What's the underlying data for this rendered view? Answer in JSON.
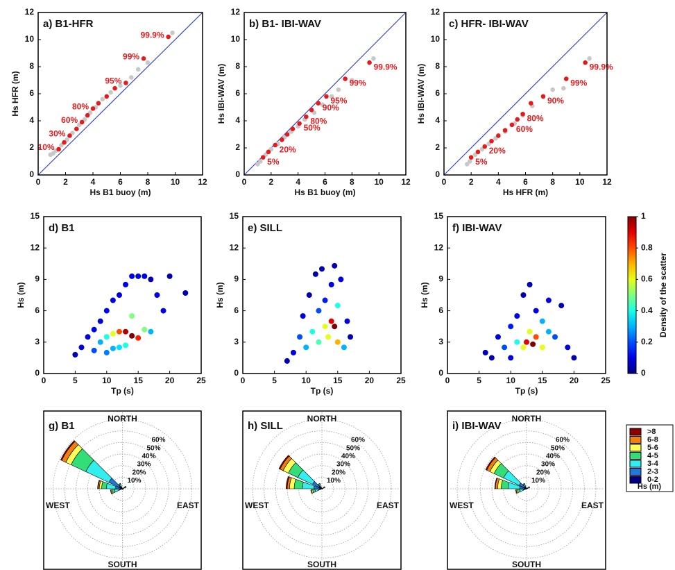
{
  "chart_data": [
    {
      "type": "qq",
      "title": "a) B1-HFR",
      "x_label": "Hs B1 buoy (m)",
      "y_label": "Hs HFR  (m)",
      "xlim": [
        0,
        12
      ],
      "ylim": [
        0,
        12
      ],
      "xticks": [
        0,
        2,
        4,
        6,
        8,
        10,
        12
      ],
      "yticks": [
        0,
        2,
        4,
        6,
        8,
        10,
        12
      ],
      "series": [
        {
          "color": "#c8c8c8",
          "x": [
            0.9,
            1.1,
            1.3,
            1.7,
            2.1,
            2.5,
            3.0,
            3.4,
            3.8,
            4.2,
            4.7,
            5.3,
            6.0,
            6.8,
            7.3,
            8.0,
            9.8
          ],
          "values": [
            1.5,
            1.6,
            1.8,
            2.2,
            2.6,
            3.1,
            3.7,
            4.1,
            4.6,
            5.0,
            5.6,
            6.1,
            6.6,
            7.2,
            7.8,
            8.3,
            10.5
          ]
        },
        {
          "color": "#e41a1c",
          "x": [
            1.5,
            1.9,
            2.3,
            2.8,
            3.2,
            3.6,
            4.0,
            4.4,
            5.0,
            5.6,
            6.4,
            7.7,
            9.5
          ],
          "values": [
            1.9,
            2.4,
            2.9,
            3.4,
            3.9,
            4.4,
            4.9,
            5.3,
            5.8,
            6.4,
            6.8,
            8.6,
            10.2
          ],
          "point_labels": [
            "10%",
            null,
            "30%",
            null,
            "60%",
            null,
            "80%",
            null,
            null,
            null,
            "95%",
            "99%",
            "99.9%"
          ]
        }
      ]
    },
    {
      "type": "qq",
      "title": "b) B1- IBI-WAV",
      "x_label": "Hs B1 buoy (m)",
      "y_label": "Hs IBI-WAV  (m)",
      "xlim": [
        0,
        12
      ],
      "ylim": [
        0,
        12
      ],
      "xticks": [
        0,
        2,
        4,
        6,
        8,
        10,
        12
      ],
      "yticks": [
        0,
        2,
        4,
        6,
        8,
        10,
        12
      ],
      "series": [
        {
          "color": "#c8c8c8",
          "x": [
            1.0,
            1.2,
            1.6,
            2.0,
            2.5,
            3.0,
            3.5,
            4.0,
            4.5,
            5.2,
            5.8,
            6.5,
            7.0,
            8.0,
            9.6
          ],
          "values": [
            0.8,
            1.0,
            1.5,
            1.9,
            2.3,
            2.8,
            3.2,
            3.6,
            4.1,
            4.6,
            5.2,
            5.8,
            6.3,
            7.0,
            8.6
          ]
        },
        {
          "color": "#e41a1c",
          "x": [
            1.4,
            1.8,
            2.3,
            2.8,
            3.2,
            3.6,
            4.1,
            4.6,
            5.0,
            5.5,
            6.1,
            7.5,
            9.3
          ],
          "values": [
            1.3,
            1.7,
            2.2,
            2.6,
            3.0,
            3.4,
            3.8,
            4.3,
            4.8,
            5.3,
            5.8,
            7.1,
            8.3
          ],
          "point_labels": [
            "5%",
            null,
            "20%",
            null,
            null,
            null,
            "50%",
            "80%",
            null,
            "90%",
            "95%",
            "99%",
            "99.9%"
          ]
        }
      ]
    },
    {
      "type": "qq",
      "title": "c) HFR- IBI-WAV",
      "x_label": "Hs HFR (m)",
      "y_label": "Hs IBI-WAV (m)",
      "xlim": [
        0,
        12
      ],
      "ylim": [
        0,
        12
      ],
      "xticks": [
        0,
        2,
        4,
        6,
        8,
        10,
        12
      ],
      "yticks": [
        0,
        2,
        4,
        6,
        8,
        10,
        12
      ],
      "series": [
        {
          "color": "#c8c8c8",
          "x": [
            1.7,
            1.9,
            2.3,
            2.8,
            3.3,
            3.8,
            4.5,
            5.2,
            5.8,
            6.5,
            7.3,
            8.0,
            8.8,
            10.7
          ],
          "values": [
            0.8,
            1.0,
            1.5,
            1.9,
            2.3,
            2.7,
            3.2,
            3.8,
            4.4,
            5.1,
            5.8,
            6.3,
            6.4,
            8.6
          ]
        },
        {
          "color": "#e41a1c",
          "x": [
            2.0,
            2.5,
            3.0,
            3.5,
            4.0,
            4.5,
            5.0,
            5.4,
            5.8,
            6.4,
            7.3,
            9.0,
            10.4
          ],
          "values": [
            1.3,
            1.7,
            2.1,
            2.5,
            2.9,
            3.3,
            3.7,
            4.1,
            4.5,
            5.3,
            5.8,
            7.1,
            8.3
          ],
          "point_labels": [
            "5%",
            null,
            "20%",
            null,
            null,
            null,
            "60%",
            null,
            "80%",
            null,
            "90%",
            "99%",
            "99.9%"
          ]
        }
      ]
    },
    {
      "type": "density_scatter",
      "title": "d) B1",
      "x_label": "Tp (s)",
      "y_label": "Hs (m)",
      "colormap": "jet",
      "xlim": [
        0,
        25
      ],
      "ylim": [
        0,
        15
      ],
      "xticks": [
        0,
        5,
        10,
        15,
        20,
        25
      ],
      "yticks": [
        0,
        3,
        6,
        9,
        12,
        15
      ],
      "x": [
        5,
        6,
        7,
        8,
        8,
        9,
        9,
        10,
        10,
        10,
        11,
        11,
        11,
        12,
        12,
        12,
        13,
        13,
        13,
        14,
        14,
        14,
        15,
        15,
        16,
        16,
        17,
        17,
        18,
        19,
        20,
        22.5
      ],
      "values": [
        1.8,
        2.5,
        3.5,
        4.2,
        2.2,
        5.0,
        3.0,
        6.0,
        3.5,
        2.0,
        7.0,
        3.8,
        2.4,
        7.5,
        4.0,
        2.5,
        8.5,
        4.0,
        2.7,
        9.3,
        3.6,
        5.5,
        9.3,
        3.4,
        9.3,
        4.2,
        9.0,
        4.0,
        7.5,
        6.0,
        9.3,
        7.7
      ],
      "density": [
        0.05,
        0.08,
        0.1,
        0.1,
        0.2,
        0.1,
        0.3,
        0.1,
        0.4,
        0.25,
        0.1,
        0.6,
        0.3,
        0.1,
        0.8,
        0.35,
        0.1,
        0.95,
        0.4,
        0.1,
        1.0,
        0.5,
        0.1,
        0.85,
        0.1,
        0.5,
        0.05,
        0.3,
        0.1,
        0.1,
        0.05,
        0.05
      ]
    },
    {
      "type": "density_scatter",
      "title": "e) SILL",
      "x_label": "Tp (s)",
      "y_label": "Hs (m)",
      "colormap": "jet",
      "xlim": [
        0,
        25
      ],
      "ylim": [
        0,
        15
      ],
      "xticks": [
        0,
        5,
        10,
        15,
        20,
        25
      ],
      "yticks": [
        0,
        3,
        6,
        9,
        12,
        15
      ],
      "x": [
        7,
        8,
        9,
        9.5,
        10,
        10.5,
        11,
        11.5,
        12,
        12,
        12.5,
        13,
        13,
        13.5,
        14,
        14,
        14.5,
        14.5,
        15,
        15,
        15.5,
        16,
        16.5,
        17
      ],
      "values": [
        1.2,
        2.0,
        3.5,
        5.5,
        2.5,
        7.5,
        4.0,
        9.5,
        3.0,
        6.0,
        10.0,
        4.5,
        7.0,
        3.5,
        5.0,
        8.5,
        4.5,
        10.3,
        3.0,
        6.5,
        9.0,
        2.5,
        5.0,
        3.5
      ],
      "density": [
        0.05,
        0.1,
        0.2,
        0.1,
        0.3,
        0.05,
        0.4,
        0.05,
        0.45,
        0.2,
        0.05,
        0.6,
        0.15,
        0.6,
        0.9,
        0.1,
        1.0,
        0.05,
        0.7,
        0.4,
        0.1,
        0.3,
        0.1,
        0.05
      ]
    },
    {
      "type": "density_scatter",
      "title": "f) IBI-WAV",
      "x_label": "Tp (s)",
      "y_label": "Hs (m)",
      "colormap": "jet",
      "xlim": [
        0,
        25
      ],
      "ylim": [
        0,
        15
      ],
      "xticks": [
        0,
        5,
        10,
        15,
        20,
        25
      ],
      "yticks": [
        0,
        3,
        6,
        9,
        12,
        15
      ],
      "x": [
        6,
        7,
        8,
        9,
        10,
        10,
        11,
        11,
        12,
        12,
        12.5,
        13,
        13,
        13.5,
        14,
        14,
        15,
        15,
        16,
        16,
        17,
        18,
        19,
        20
      ],
      "values": [
        2.0,
        1.5,
        3.5,
        2.5,
        1.5,
        4.5,
        3.0,
        5.5,
        2.5,
        7.5,
        3.0,
        4.0,
        8.5,
        2.8,
        3.5,
        6.0,
        2.5,
        5.0,
        4.0,
        7.0,
        3.5,
        6.5,
        2.5,
        1.5
      ],
      "density": [
        0.05,
        0.05,
        0.1,
        0.2,
        0.1,
        0.15,
        0.4,
        0.1,
        0.6,
        0.05,
        0.9,
        0.6,
        0.05,
        1.0,
        0.8,
        0.1,
        0.6,
        0.3,
        0.3,
        0.1,
        0.2,
        0.05,
        0.1,
        0.05
      ],
      "colorbar": {
        "label": "Density of the scatter",
        "lim": [
          0,
          1
        ],
        "ticks": [
          0,
          0.2,
          0.4,
          0.6,
          0.8,
          1
        ]
      }
    },
    {
      "type": "rose",
      "title": "g) B1",
      "compass": [
        "NORTH",
        "EAST",
        "SOUTH",
        "WEST"
      ],
      "directions": [
        255,
        280,
        305,
        330,
        60,
        150
      ],
      "sector_width": 20,
      "rlim": [
        0,
        60
      ],
      "rticks": [
        {
          "value": 10,
          "label": "10%"
        },
        {
          "value": 20,
          "label": "20%"
        },
        {
          "value": 30,
          "label": "30%"
        },
        {
          "value": 40,
          "label": "40%"
        },
        {
          "value": 50,
          "label": "50%"
        },
        {
          "value": 60,
          "label": "60%"
        }
      ],
      "series": [
        {
          "name": ">8",
          "color": "#8b0000",
          "values": [
            0,
            0.5,
            1,
            0,
            0,
            0
          ]
        },
        {
          "name": "6-8",
          "color": "#f07f0f",
          "values": [
            0.5,
            1,
            4,
            0,
            0,
            0
          ]
        },
        {
          "name": "5-6",
          "color": "#ffff55",
          "values": [
            1,
            2,
            5,
            0,
            0,
            0
          ]
        },
        {
          "name": "4-5",
          "color": "#33dd77",
          "values": [
            2,
            4,
            14,
            1,
            0.5,
            0
          ]
        },
        {
          "name": "3-4",
          "color": "#33eeee",
          "values": [
            4,
            8,
            22,
            2,
            1,
            0
          ]
        },
        {
          "name": "2-3",
          "color": "#1e78dc",
          "values": [
            2,
            4,
            10,
            1,
            1,
            0.5
          ]
        },
        {
          "name": "0-2",
          "color": "#000080",
          "values": [
            1,
            2,
            3,
            1,
            1,
            0.5
          ]
        }
      ]
    },
    {
      "type": "rose",
      "title": "h) SILL",
      "compass": [
        "NORTH",
        "EAST",
        "SOUTH",
        "WEST"
      ],
      "directions": [
        255,
        280,
        305,
        330,
        60,
        150
      ],
      "sector_width": 20,
      "rlim": [
        0,
        60
      ],
      "rticks": [
        {
          "value": 10,
          "label": "10%"
        },
        {
          "value": 20,
          "label": "20%"
        },
        {
          "value": 30,
          "label": "30%"
        },
        {
          "value": 40,
          "label": "40%"
        },
        {
          "value": 50,
          "label": "50%"
        },
        {
          "value": 60,
          "label": "60%"
        }
      ],
      "series": [
        {
          "name": ">8",
          "color": "#8b0000",
          "values": [
            0,
            1,
            1,
            0,
            0,
            0
          ]
        },
        {
          "name": "6-8",
          "color": "#f07f0f",
          "values": [
            0.5,
            2,
            3,
            0,
            0,
            0
          ]
        },
        {
          "name": "5-6",
          "color": "#ffff55",
          "values": [
            1,
            4,
            5,
            0,
            0,
            0
          ]
        },
        {
          "name": "4-5",
          "color": "#33dd77",
          "values": [
            2,
            7,
            9,
            1,
            0,
            0
          ]
        },
        {
          "name": "3-4",
          "color": "#33eeee",
          "values": [
            3,
            10,
            14,
            2,
            1,
            0
          ]
        },
        {
          "name": "2-3",
          "color": "#1e78dc",
          "values": [
            2,
            5,
            6,
            1,
            1,
            0
          ]
        },
        {
          "name": "0-2",
          "color": "#000080",
          "values": [
            1,
            2,
            3,
            1,
            1,
            0.5
          ]
        }
      ]
    },
    {
      "type": "rose",
      "title": "i) IBI-WAV",
      "compass": [
        "NORTH",
        "EAST",
        "SOUTH",
        "WEST"
      ],
      "directions": [
        255,
        280,
        305,
        330,
        60,
        150
      ],
      "sector_width": 20,
      "rlim": [
        0,
        60
      ],
      "rticks": [
        {
          "value": 10,
          "label": "10%"
        },
        {
          "value": 20,
          "label": "20%"
        },
        {
          "value": 30,
          "label": "30%"
        },
        {
          "value": 40,
          "label": "40%"
        },
        {
          "value": 50,
          "label": "50%"
        },
        {
          "value": 60,
          "label": "60%"
        }
      ],
      "legend": true,
      "legend_title": "Hs (m)",
      "series": [
        {
          "name": ">8",
          "color": "#8b0000",
          "values": [
            0,
            0.5,
            1,
            0,
            0,
            0
          ]
        },
        {
          "name": "6-8",
          "color": "#f07f0f",
          "values": [
            0.5,
            2,
            3,
            0,
            0,
            0
          ]
        },
        {
          "name": "5-6",
          "color": "#ffff55",
          "values": [
            1,
            3,
            4,
            0,
            0,
            0
          ]
        },
        {
          "name": "4-5",
          "color": "#33dd77",
          "values": [
            2,
            6,
            9,
            1,
            0,
            0
          ]
        },
        {
          "name": "3-4",
          "color": "#33eeee",
          "values": [
            3,
            10,
            15,
            2,
            1,
            0
          ]
        },
        {
          "name": "2-3",
          "color": "#1e78dc",
          "values": [
            2,
            4,
            5,
            1,
            1,
            0
          ]
        },
        {
          "name": "0-2",
          "color": "#000080",
          "values": [
            1,
            2,
            2,
            1,
            1,
            0.5
          ]
        }
      ]
    }
  ]
}
